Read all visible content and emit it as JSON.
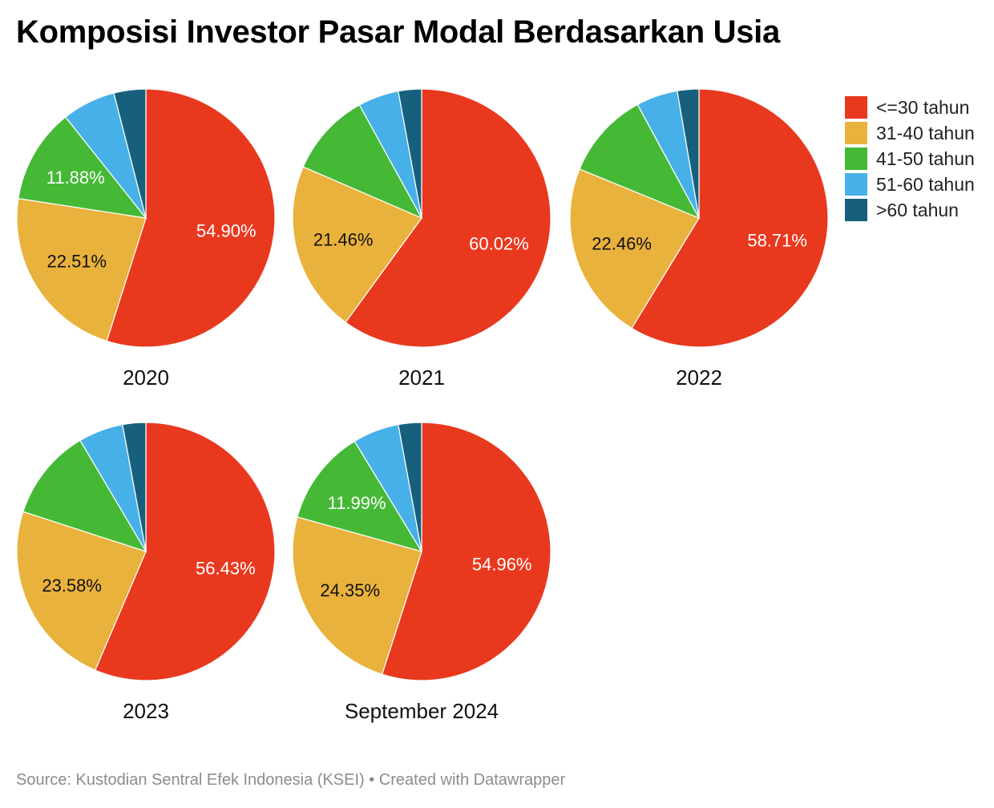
{
  "title": "Komposisi Investor Pasar Modal Berdasarkan Usia",
  "source": "Source: Kustodian Sentral Efek Indonesia (KSEI) • Created with Datawrapper",
  "chart_data": {
    "type": "pie",
    "categories": [
      "<=30 tahun",
      "31-40 tahun",
      "41-50 tahun",
      "51-60 tahun",
      ">60 tahun"
    ],
    "colors": [
      "#e8391f",
      "#e9b23c",
      "#45b936",
      "#47b0e8",
      "#17607d"
    ],
    "legend_position": "right",
    "charts": [
      {
        "title": "2020",
        "values": [
          54.9,
          22.51,
          11.88,
          6.7,
          4.0
        ],
        "labels": [
          "54.90%",
          "22.51%",
          "11.88%",
          "",
          ""
        ]
      },
      {
        "title": "2021",
        "values": [
          60.02,
          21.46,
          10.5,
          5.1,
          2.9
        ],
        "labels": [
          "60.02%",
          "21.46%",
          "",
          "",
          ""
        ]
      },
      {
        "title": "2022",
        "values": [
          58.71,
          22.46,
          10.9,
          5.2,
          2.7
        ],
        "labels": [
          "58.71%",
          "22.46%",
          "",
          "",
          ""
        ]
      },
      {
        "title": "2023",
        "values": [
          56.43,
          23.58,
          11.5,
          5.6,
          2.9
        ],
        "labels": [
          "56.43%",
          "23.58%",
          "",
          "",
          ""
        ]
      },
      {
        "title": "September 2024",
        "values": [
          54.96,
          24.35,
          11.99,
          5.8,
          2.9
        ],
        "labels": [
          "54.96%",
          "24.35%",
          "11.99%",
          "",
          ""
        ]
      }
    ]
  }
}
